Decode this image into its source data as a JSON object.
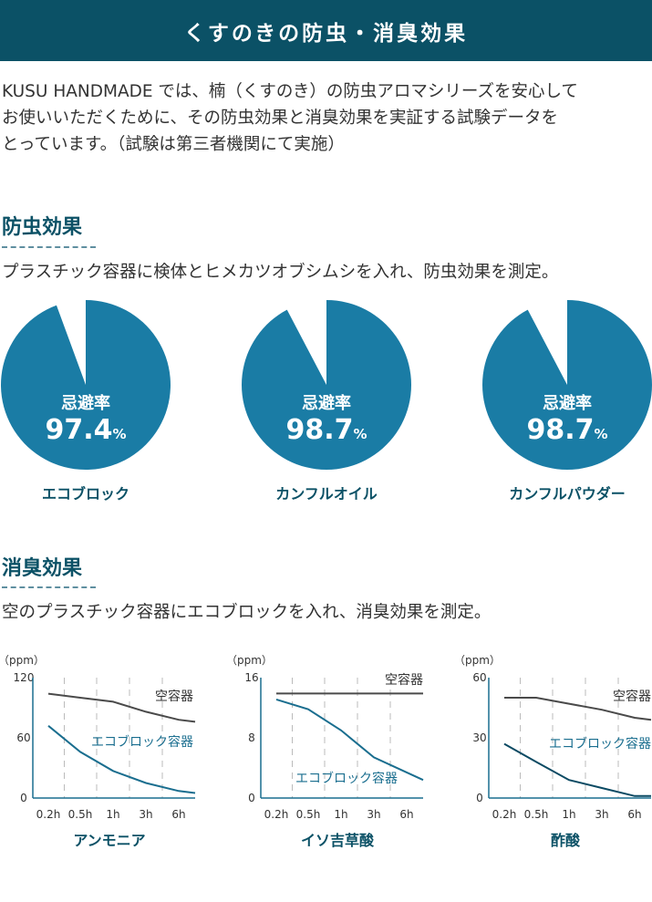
{
  "header": {
    "title": "くすのきの防虫・消臭効果"
  },
  "intro": {
    "lines": [
      "KUSU HANDMADE では、楠（くすのき）の防虫アロマシリーズを安心して",
      "お使いいただくために、その防虫効果と消臭効果を実証する試験データを",
      "とっています。（試験は第三者機関にて実施）"
    ]
  },
  "insect": {
    "title": "防虫効果",
    "desc": "プラスチック容器に検体とヒメカツオブシムシを入れ、防虫効果を測定。",
    "label": "忌避率",
    "unit": "%",
    "items": [
      {
        "name": "エコブロック",
        "value": "97.4"
      },
      {
        "name": "カンフルオイル",
        "value": "98.7"
      },
      {
        "name": "カンフルパウダー",
        "value": "98.7"
      }
    ]
  },
  "deodor": {
    "title": "消臭効果",
    "desc": "空のプラスチック容器にエコブロックを入れ、消臭効果を測定。",
    "unit_label": "（ppm）",
    "x_ticks": [
      "0.2h",
      "0.5h",
      "1h",
      "3h",
      "6h"
    ]
  },
  "chart_data": [
    {
      "type": "line",
      "title": "アンモニア",
      "ylabel": "（ppm）",
      "ylim": [
        0,
        120
      ],
      "y_ticks": [
        "120",
        "60",
        "0"
      ],
      "categories": [
        "0.2h",
        "0.5h",
        "1h",
        "3h",
        "6h"
      ],
      "series": [
        {
          "name": "空容器",
          "color": "#4a4a4a",
          "x": [
            0.2,
            0.5,
            1,
            3,
            6,
            7
          ],
          "values": [
            104,
            100,
            96,
            86,
            78,
            76
          ]
        },
        {
          "name": "エコブロック容器",
          "color": "#1a6e8f",
          "x": [
            0.2,
            0.5,
            1,
            3,
            6,
            7
          ],
          "values": [
            72,
            46,
            27,
            15,
            7,
            5
          ]
        }
      ]
    },
    {
      "type": "line",
      "title": "イソ吉草酸",
      "ylabel": "（ppm）",
      "ylim": [
        0,
        16
      ],
      "y_ticks": [
        "16",
        "8",
        "0"
      ],
      "categories": [
        "0.2h",
        "0.5h",
        "1h",
        "3h",
        "6h"
      ],
      "series": [
        {
          "name": "空容器",
          "color": "#4a4a4a",
          "x": [
            0.2,
            0.5,
            1,
            3,
            6,
            7
          ],
          "values": [
            13.9,
            13.9,
            13.9,
            13.9,
            13.9,
            13.9
          ]
        },
        {
          "name": "エコブロック容器",
          "color": "#1a6e8f",
          "x": [
            0.2,
            0.5,
            1,
            3,
            6,
            7
          ],
          "values": [
            13.1,
            11.8,
            9.0,
            5.4,
            3.4,
            2.4
          ]
        }
      ]
    },
    {
      "type": "line",
      "title": "酢酸",
      "ylabel": "（ppm）",
      "ylim": [
        0,
        60
      ],
      "y_ticks": [
        "60",
        "30",
        "0"
      ],
      "categories": [
        "0.2h",
        "0.5h",
        "1h",
        "3h",
        "6h"
      ],
      "series": [
        {
          "name": "空容器",
          "color": "#4a4a4a",
          "x": [
            0.2,
            0.5,
            1,
            3,
            6,
            7
          ],
          "values": [
            50,
            50,
            47,
            44,
            40,
            39
          ]
        },
        {
          "name": "エコブロック容器",
          "color": "#0b4a63",
          "x": [
            0.2,
            0.5,
            1,
            3,
            6,
            7
          ],
          "values": [
            27,
            18,
            9,
            5,
            1,
            1
          ]
        }
      ]
    }
  ],
  "colors": {
    "pie": "#1a7ca5",
    "header": "#0b5166",
    "accent": "#0b5166"
  }
}
